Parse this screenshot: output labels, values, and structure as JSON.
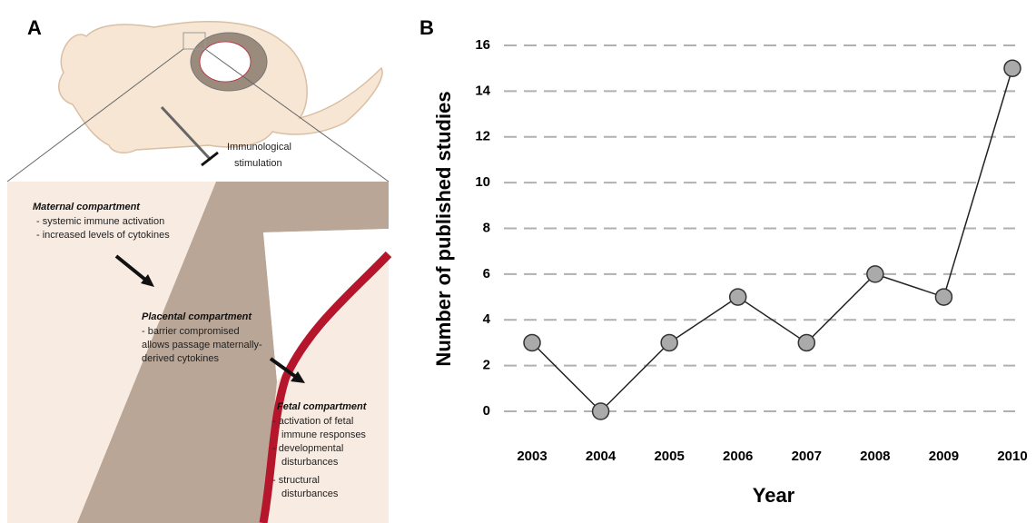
{
  "diagram": {
    "panel_label": "A",
    "stimulation_label": [
      "Immunological",
      "stimulation"
    ],
    "maternal": {
      "title": "Maternal compartment",
      "lines": [
        "- systemic immune activation",
        "- increased levels of cytokines"
      ]
    },
    "placental": {
      "title": "Placental compartment",
      "lines": [
        "- barrier compromised",
        "allows passage maternally-",
        "derived cytokines"
      ]
    },
    "fetal": {
      "title": "Fetal compartment",
      "lines": [
        "- activation  of fetal",
        "immune responses",
        "- developmental",
        "disturbances",
        "- structural",
        "disturbances"
      ]
    }
  },
  "chart_data": {
    "type": "line",
    "panel_label": "B",
    "x_label": "Year",
    "y_label": "Number of published studies",
    "categories": [
      "2003",
      "2004",
      "2005",
      "2006",
      "2007",
      "2008",
      "2009",
      "2010"
    ],
    "values": [
      3,
      0,
      3,
      5,
      3,
      6,
      5,
      15
    ],
    "color": "#aaaaaa",
    "ylim": [
      0,
      16
    ],
    "yticks": [
      0,
      2,
      4,
      6,
      8,
      10,
      12,
      14,
      16
    ],
    "grid": true
  }
}
